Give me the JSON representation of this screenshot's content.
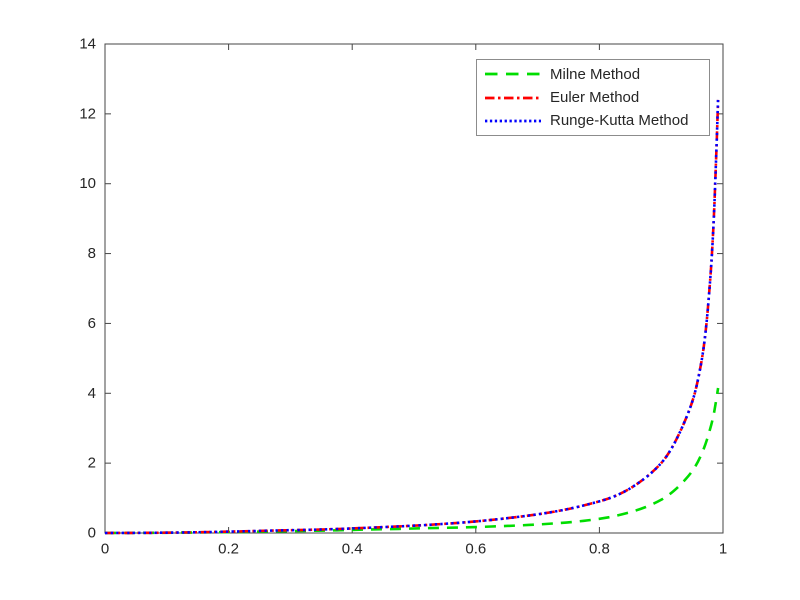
{
  "figure": {
    "background": "#ffffff",
    "spine_color": "#454545",
    "tick_color": "#454545",
    "text_color": "#262626",
    "legend_border_color": "#8c8c8c"
  },
  "axes": {
    "xlim": [
      0,
      1
    ],
    "ylim": [
      0,
      14
    ],
    "xticks": [
      0,
      0.2,
      0.4,
      0.6,
      0.8,
      1
    ],
    "xtick_labels": [
      "0",
      "0.2",
      "0.4",
      "0.6",
      "0.8",
      "1"
    ],
    "yticks": [
      0,
      2,
      4,
      6,
      8,
      10,
      12,
      14
    ],
    "ytick_labels": [
      "0",
      "2",
      "4",
      "6",
      "8",
      "10",
      "12",
      "14"
    ]
  },
  "chart_data": {
    "type": "line",
    "title": "",
    "xlabel": "",
    "ylabel": "",
    "xlim": [
      0,
      1
    ],
    "ylim": [
      0,
      14
    ],
    "grid": false,
    "legend_position": "upper-right-inside",
    "x": [
      0,
      0.05,
      0.1,
      0.15,
      0.2,
      0.25,
      0.3,
      0.35,
      0.4,
      0.45,
      0.5,
      0.55,
      0.6,
      0.65,
      0.7,
      0.75,
      0.8,
      0.83,
      0.86,
      0.89,
      0.91,
      0.93,
      0.95,
      0.96,
      0.97,
      0.978,
      0.984,
      0.988,
      0.992
    ],
    "series": [
      {
        "name": "Milne Method",
        "color": "#00dd00",
        "linestyle": "dashed",
        "values": [
          0,
          0.002,
          0.006,
          0.013,
          0.025,
          0.04,
          0.055,
          0.07,
          0.09,
          0.11,
          0.13,
          0.15,
          0.17,
          0.2,
          0.24,
          0.3,
          0.4,
          0.5,
          0.64,
          0.85,
          1.05,
          1.35,
          1.75,
          2.05,
          2.45,
          2.9,
          3.3,
          3.7,
          4.15
        ]
      },
      {
        "name": "Euler Method",
        "color": "#ff0000",
        "linestyle": "dash-dot",
        "values": [
          0,
          0.003,
          0.01,
          0.02,
          0.04,
          0.06,
          0.08,
          0.1,
          0.13,
          0.17,
          0.21,
          0.26,
          0.33,
          0.42,
          0.53,
          0.68,
          0.9,
          1.08,
          1.38,
          1.8,
          2.2,
          2.85,
          3.7,
          4.4,
          5.4,
          6.9,
          8.5,
          10.3,
          12.4
        ]
      },
      {
        "name": "Runge-Kutta Method",
        "color": "#0000ff",
        "linestyle": "dotted",
        "values": [
          0,
          0.003,
          0.01,
          0.02,
          0.04,
          0.06,
          0.08,
          0.1,
          0.13,
          0.17,
          0.21,
          0.26,
          0.33,
          0.42,
          0.53,
          0.68,
          0.9,
          1.08,
          1.38,
          1.8,
          2.2,
          2.85,
          3.7,
          4.4,
          5.4,
          6.9,
          8.5,
          10.3,
          12.45
        ]
      }
    ]
  }
}
